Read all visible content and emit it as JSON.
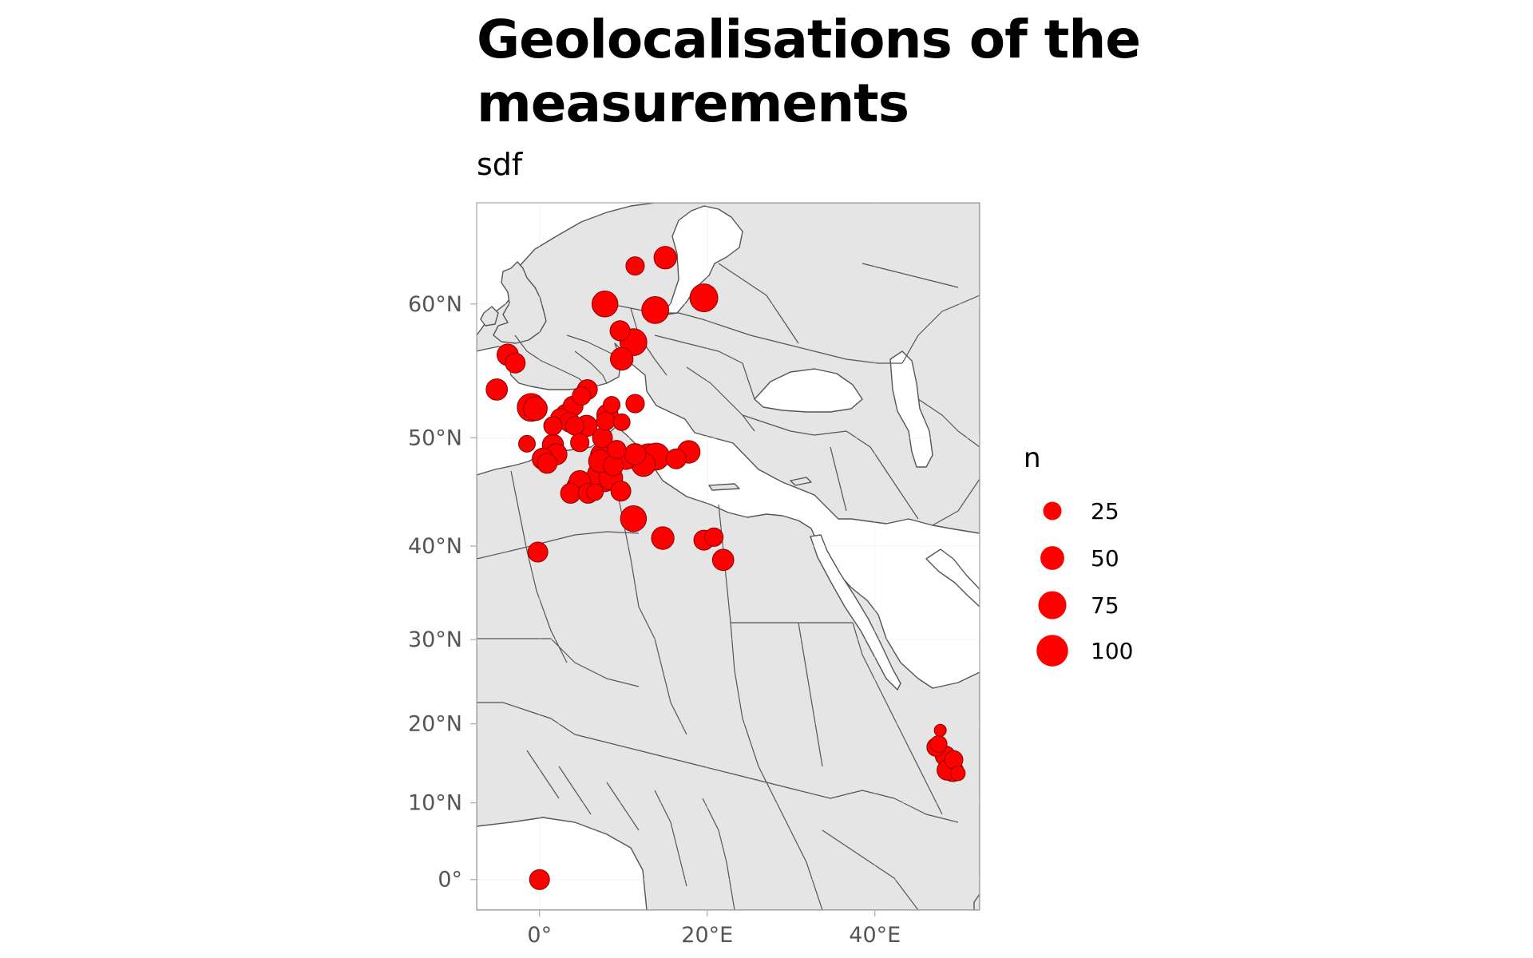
{
  "title": "Geolocalisations of the measurements",
  "subtitle": "sdf",
  "colors": {
    "land": "#e5e5e5",
    "border": "#555555",
    "sea": "#ffffff",
    "point_fill": "#ff0000",
    "point_stroke": "#8b0000",
    "grid": "#ebebeb",
    "frame": "#aaaaaa",
    "tick_text": "#555555"
  },
  "chart_data": {
    "type": "scatter",
    "projection": "mercator",
    "xlim": [
      -7.5,
      52.5
    ],
    "ylim": [
      -4,
      66
    ],
    "x_ticks": [
      {
        "value": 0,
        "label": "0°"
      },
      {
        "value": 20,
        "label": "20°E"
      },
      {
        "value": 40,
        "label": "40°E"
      }
    ],
    "y_ticks": [
      {
        "value": 0,
        "label": "0°"
      },
      {
        "value": 10,
        "label": "10°N"
      },
      {
        "value": 20,
        "label": "20°N"
      },
      {
        "value": 30,
        "label": "30°N"
      },
      {
        "value": 40,
        "label": "40°N"
      },
      {
        "value": 50,
        "label": "50°N"
      },
      {
        "value": 60,
        "label": "60°N"
      }
    ],
    "grid": true,
    "legend": {
      "title": "n",
      "position": "right",
      "entries": [
        {
          "label": "25",
          "value": 25
        },
        {
          "label": "50",
          "value": 50
        },
        {
          "label": "75",
          "value": 75
        },
        {
          "label": "100",
          "value": 100
        }
      ]
    },
    "points": [
      {
        "lon": 11.4,
        "lat": 62.4,
        "n": 20
      },
      {
        "lon": 15.0,
        "lat": 62.9,
        "n": 35
      },
      {
        "lon": 19.6,
        "lat": 60.4,
        "n": 60
      },
      {
        "lon": 13.8,
        "lat": 59.6,
        "n": 55
      },
      {
        "lon": 7.8,
        "lat": 60.0,
        "n": 50
      },
      {
        "lon": 9.6,
        "lat": 58.2,
        "n": 25
      },
      {
        "lon": 11.2,
        "lat": 57.4,
        "n": 55
      },
      {
        "lon": 9.8,
        "lat": 56.2,
        "n": 35
      },
      {
        "lon": -3.8,
        "lat": 56.5,
        "n": 30
      },
      {
        "lon": -2.9,
        "lat": 55.9,
        "n": 25
      },
      {
        "lon": -5.1,
        "lat": 53.9,
        "n": 30
      },
      {
        "lon": -1.0,
        "lat": 52.5,
        "n": 60
      },
      {
        "lon": -0.5,
        "lat": 52.4,
        "n": 40
      },
      {
        "lon": 5.7,
        "lat": 53.9,
        "n": 25
      },
      {
        "lon": 5.0,
        "lat": 53.4,
        "n": 20
      },
      {
        "lon": 4.0,
        "lat": 52.6,
        "n": 25
      },
      {
        "lon": 3.2,
        "lat": 51.9,
        "n": 30
      },
      {
        "lon": 2.5,
        "lat": 51.6,
        "n": 25
      },
      {
        "lon": 3.6,
        "lat": 51.3,
        "n": 25
      },
      {
        "lon": 1.6,
        "lat": 51.0,
        "n": 20
      },
      {
        "lon": 4.2,
        "lat": 51.0,
        "n": 20
      },
      {
        "lon": 5.6,
        "lat": 51.0,
        "n": 30
      },
      {
        "lon": 7.9,
        "lat": 51.4,
        "n": 20
      },
      {
        "lon": 8.6,
        "lat": 52.7,
        "n": 15
      },
      {
        "lon": 8.1,
        "lat": 51.9,
        "n": 30
      },
      {
        "lon": 11.4,
        "lat": 52.8,
        "n": 20
      },
      {
        "lon": 9.8,
        "lat": 51.3,
        "n": 15
      },
      {
        "lon": 7.5,
        "lat": 50.0,
        "n": 25
      },
      {
        "lon": 4.8,
        "lat": 49.6,
        "n": 20
      },
      {
        "lon": 1.6,
        "lat": 49.4,
        "n": 30
      },
      {
        "lon": -1.5,
        "lat": 49.5,
        "n": 15
      },
      {
        "lon": 2.0,
        "lat": 48.6,
        "n": 30
      },
      {
        "lon": 0.4,
        "lat": 48.2,
        "n": 30
      },
      {
        "lon": 0.9,
        "lat": 47.8,
        "n": 25
      },
      {
        "lon": 7.5,
        "lat": 48.5,
        "n": 40
      },
      {
        "lon": 7.2,
        "lat": 48.0,
        "n": 35
      },
      {
        "lon": 9.2,
        "lat": 49.0,
        "n": 20
      },
      {
        "lon": 10.3,
        "lat": 48.2,
        "n": 30
      },
      {
        "lon": 11.4,
        "lat": 48.6,
        "n": 30
      },
      {
        "lon": 13.0,
        "lat": 48.3,
        "n": 60
      },
      {
        "lon": 13.9,
        "lat": 48.4,
        "n": 55
      },
      {
        "lon": 12.4,
        "lat": 47.7,
        "n": 40
      },
      {
        "lon": 16.3,
        "lat": 48.2,
        "n": 25
      },
      {
        "lon": 17.8,
        "lat": 48.8,
        "n": 35
      },
      {
        "lon": 7.6,
        "lat": 46.7,
        "n": 85
      },
      {
        "lon": 8.5,
        "lat": 46.5,
        "n": 40
      },
      {
        "lon": 8.8,
        "lat": 47.6,
        "n": 25
      },
      {
        "lon": 4.8,
        "lat": 46.2,
        "n": 30
      },
      {
        "lon": 4.6,
        "lat": 45.7,
        "n": 35
      },
      {
        "lon": 3.7,
        "lat": 45.1,
        "n": 25
      },
      {
        "lon": 5.8,
        "lat": 45.1,
        "n": 25
      },
      {
        "lon": 6.6,
        "lat": 45.2,
        "n": 15
      },
      {
        "lon": 9.7,
        "lat": 45.3,
        "n": 25
      },
      {
        "lon": 11.2,
        "lat": 42.7,
        "n": 50
      },
      {
        "lon": 14.7,
        "lat": 40.8,
        "n": 35
      },
      {
        "lon": 19.6,
        "lat": 40.6,
        "n": 25
      },
      {
        "lon": 20.8,
        "lat": 40.9,
        "n": 20
      },
      {
        "lon": 21.9,
        "lat": 38.6,
        "n": 30
      },
      {
        "lon": -0.2,
        "lat": 39.4,
        "n": 25
      },
      {
        "lon": 47.8,
        "lat": 19.2,
        "n": 5
      },
      {
        "lon": 47.6,
        "lat": 17.5,
        "n": 15
      },
      {
        "lon": 47.3,
        "lat": 17.1,
        "n": 20
      },
      {
        "lon": 48.4,
        "lat": 16.0,
        "n": 25
      },
      {
        "lon": 49.4,
        "lat": 15.5,
        "n": 20
      },
      {
        "lon": 48.6,
        "lat": 14.2,
        "n": 25
      },
      {
        "lon": 49.3,
        "lat": 14.1,
        "n": 30
      },
      {
        "lon": 49.9,
        "lat": 13.8,
        "n": 10
      },
      {
        "lon": 0.0,
        "lat": 0.0,
        "n": 25
      }
    ]
  }
}
